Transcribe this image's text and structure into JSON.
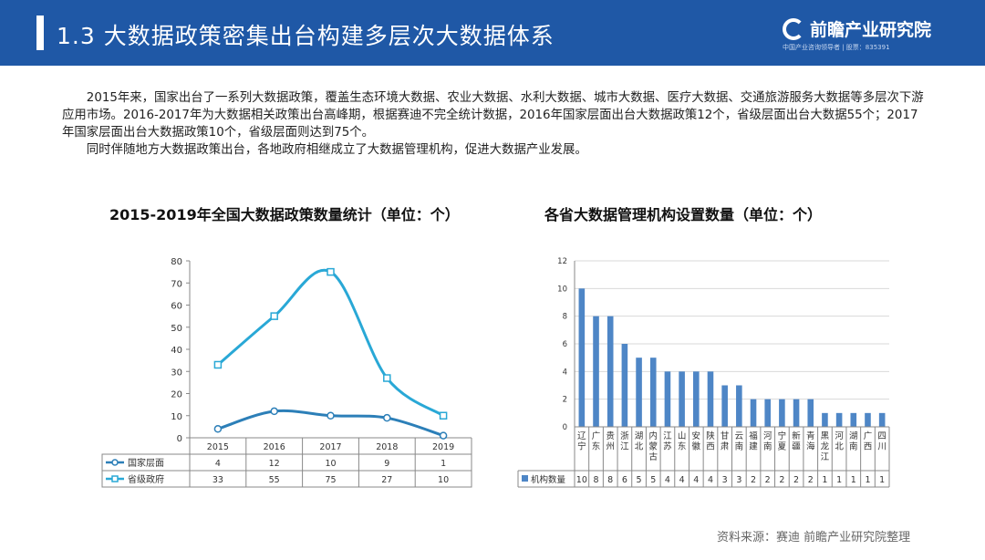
{
  "header": {
    "title": "1.3  大数据政策密集出台构建多层次大数据体系",
    "logo_name": "前瞻产业研究院",
    "logo_tagline": "中国产业咨询领导者 | 股票：835391"
  },
  "intro": {
    "paragraphs": [
      "2015年来，国家出台了一系列大数据政策，覆盖生态环境大数据、农业大数据、水利大数据、城市大数据、医疗大数据、交通旅游服务大数据等多层次下游应用市场。2016-2017年为大数据相关政策出台高峰期，根据赛迪不完全统计数据，2016年国家层面出台大数据政策12个，省级层面出台大数据55个；2017年国家层面出台大数据政策10个，省级层面则达到75个。",
      "同时伴随地方大数据政策出台，各地政府相继成立了大数据管理机构，促进大数据产业发展。"
    ]
  },
  "chart_data": [
    {
      "type": "line",
      "title": "2015-2019年全国大数据政策数量统计（单位：个）",
      "x": [
        "2015",
        "2016",
        "2017",
        "2018",
        "2019"
      ],
      "series": [
        {
          "name": "国家层面",
          "values": [
            4,
            12,
            10,
            9,
            1
          ],
          "color": "#2c7fb8"
        },
        {
          "name": "省级政府",
          "values": [
            33,
            55,
            75,
            27,
            10
          ],
          "color": "#29a8d6"
        }
      ],
      "ylim": [
        0,
        80
      ],
      "yticks": [
        "0",
        "10",
        "20",
        "30",
        "40",
        "50",
        "60",
        "70",
        "80"
      ],
      "grid": false,
      "legend": "data-table"
    },
    {
      "type": "bar",
      "title": "各省大数据管理机构设置数量（单位：个）",
      "categories": [
        "辽宁",
        "广东",
        "贵州",
        "浙江",
        "湖北",
        "内蒙古",
        "江苏",
        "山东",
        "安徽",
        "陕西",
        "甘肃",
        "云南",
        "福建",
        "河南",
        "宁夏",
        "新疆",
        "青海",
        "黑龙江",
        "河北",
        "湖南",
        "广西",
        "四川"
      ],
      "series": [
        {
          "name": "机构数量",
          "values": [
            10,
            8,
            8,
            6,
            5,
            5,
            4,
            4,
            4,
            4,
            3,
            3,
            2,
            2,
            2,
            2,
            2,
            1,
            1,
            1,
            1,
            1
          ],
          "color": "#4e86c6"
        }
      ],
      "ylim": [
        0,
        12
      ],
      "yticks": [
        "0",
        "2",
        "4",
        "6",
        "8",
        "10",
        "12"
      ],
      "grid": true,
      "legend": "data-table"
    }
  ],
  "source": "资料来源：赛迪 前瞻产业研究院整理"
}
